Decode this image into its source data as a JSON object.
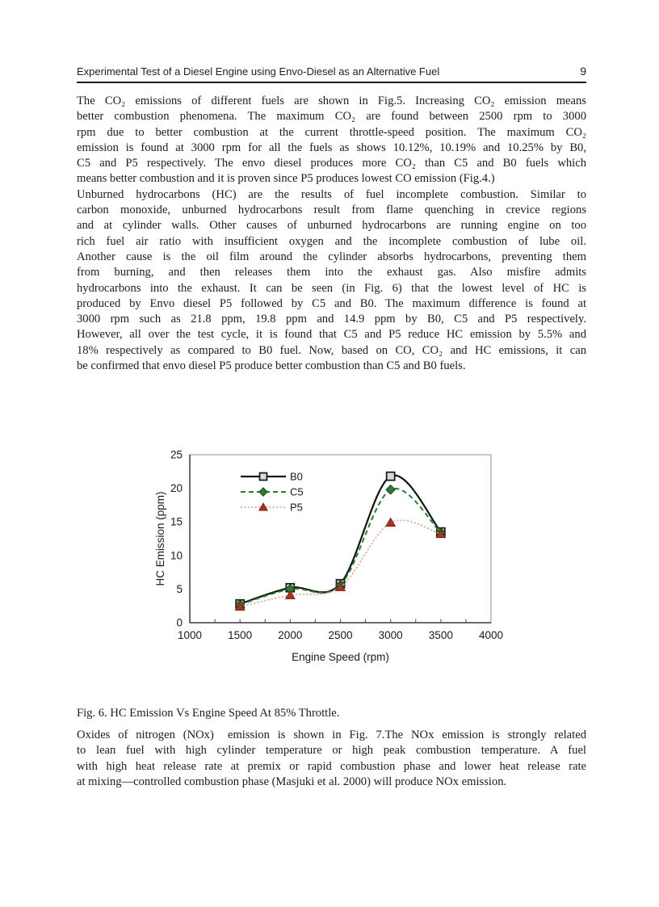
{
  "header": {
    "title": "Experimental Test of a Diesel Engine using Envo-Diesel as an Alternative Fuel",
    "page_number": "9"
  },
  "paragraphs": {
    "p1": {
      "lines": [
        "The CO₂ emissions of different fuels are shown in Fig.5. Increasing CO₂ emission means",
        "better combustion phenomena. The maximum CO₂ are found between 2500 rpm to 3000",
        "rpm due to better combustion at the current throttle-speed position. The maximum CO₂",
        "emission is found at 3000 rpm for all the fuels as shows 10.12%, 10.19% and 10.25% by B0,",
        "C5 and P5 respectively. The envo diesel produces more CO₂ than C5 and B0 fuels which",
        "means better combustion and it is proven since P5 produces lowest CO emission (Fig.4.)"
      ]
    },
    "p2": {
      "lines": [
        "Unburned hydrocarbons (HC) are the results of fuel incomplete combustion. Similar to",
        "carbon monoxide, unburned hydrocarbons result from flame quenching in crevice regions",
        "and at cylinder walls. Other causes of unburned hydrocarbons are running engine on too",
        "rich fuel air ratio with insufficient oxygen and the incomplete combustion of lube oil.",
        "Another cause is the oil film around the cylinder absorbs hydrocarbons, preventing them",
        "from burning, and then releases them into the exhaust gas. Also misfire admits",
        "hydrocarbons into the exhaust. It can be seen (in Fig. 6) that the lowest level of HC is",
        "produced by Envo diesel P5 followed by C5 and B0. The maximum difference is found at",
        "3000 rpm such as 21.8 ppm, 19.8 ppm and 14.9 ppm by B0, C5 and P5 respectively.",
        "However, all over the test cycle, it is found that C5 and P5 reduce HC emission by 5.5% and",
        "18% respectively as compared to B0 fuel. Now, based on CO, CO₂ and HC emissions, it can",
        "be confirmed that envo diesel P5 produce better combustion than C5 and B0 fuels."
      ]
    },
    "p3": {
      "lines": [
        "Oxides of nitrogen (NOx)  emission is shown in Fig. 7.The NOx emission is strongly related",
        "to lean fuel with high cylinder temperature or high peak combustion temperature. A fuel",
        "with high heat release rate at premix or rapid combustion phase and lower heat release rate",
        "at mixing—controlled combustion phase (Masjuki et al. 2000) will produce NOx emission."
      ]
    }
  },
  "figure": {
    "caption": "Fig. 6. HC Emission Vs Engine Speed At 85% Throttle."
  },
  "chart_data": {
    "type": "line",
    "title": "",
    "xlabel": "Engine Speed (rpm)",
    "ylabel": "HC Emission (ppm)",
    "xlim": [
      1000,
      4000
    ],
    "ylim": [
      0,
      25
    ],
    "x_ticks": [
      1000,
      1500,
      2000,
      2500,
      3000,
      3500,
      4000
    ],
    "y_ticks": [
      0,
      5,
      10,
      15,
      20,
      25
    ],
    "x_minor_step": 250,
    "grid": false,
    "legend_position": "upper-left-inside",
    "x": [
      1500,
      2000,
      2500,
      3000,
      3500
    ],
    "series": [
      {
        "name": "B0",
        "values": [
          2.8,
          5.2,
          5.8,
          21.8,
          13.5
        ],
        "color": "#141414",
        "line_style": "solid",
        "marker": "square",
        "marker_fill": "#d9d9d9",
        "marker_stroke": "#141414"
      },
      {
        "name": "C5",
        "values": [
          2.7,
          5.0,
          5.6,
          19.8,
          13.4
        ],
        "color": "#2e7d32",
        "line_style": "dashed",
        "marker": "diamond",
        "marker_fill": "#2e7d32",
        "marker_stroke": "#14501a"
      },
      {
        "name": "P5",
        "values": [
          2.4,
          4.1,
          5.3,
          14.9,
          13.2
        ],
        "color": "#dfa091",
        "line_style": "dotted",
        "marker": "triangle",
        "marker_fill": "#a63524",
        "marker_stroke": "#7c2517"
      }
    ],
    "axis_color": "#3a3a3a",
    "frame_color": "#909090"
  }
}
